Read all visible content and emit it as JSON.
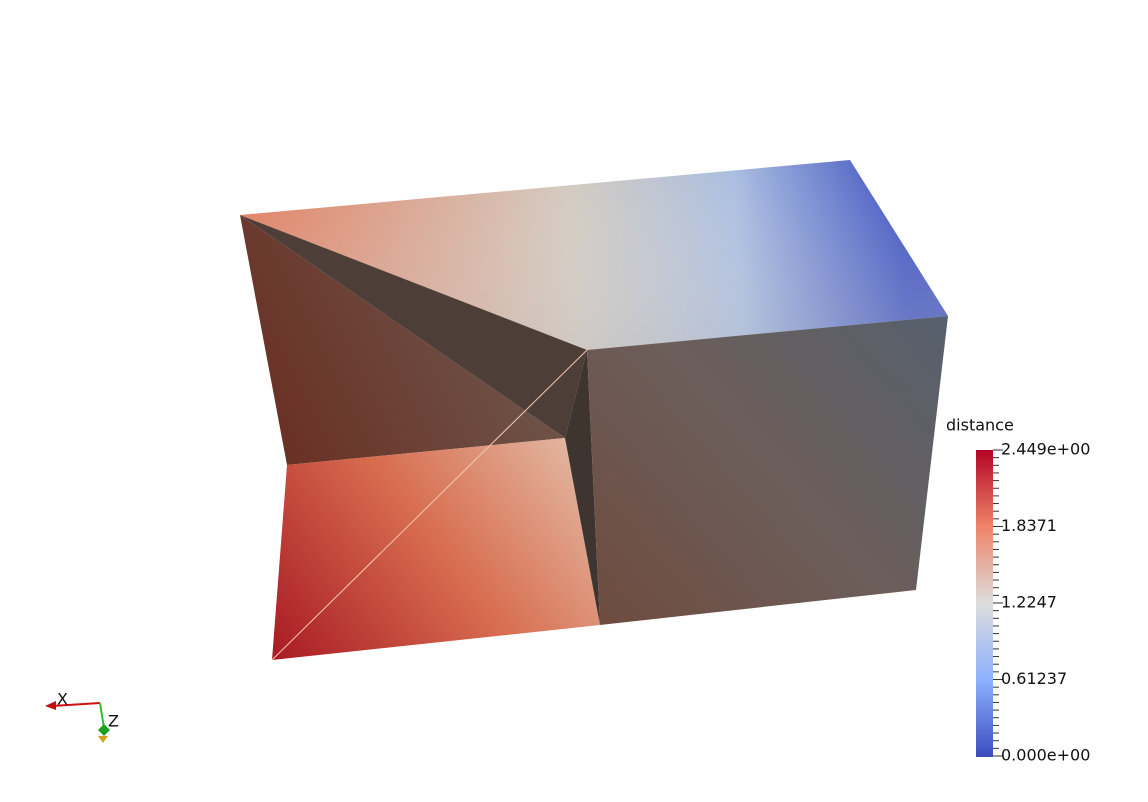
{
  "colorbar": {
    "title": "distance",
    "labels": [
      "2.449e+00",
      "1.8371",
      "1.2247",
      "0.61237",
      "0.000e+00"
    ]
  },
  "axes": {
    "x": "X",
    "z": "Z"
  }
}
